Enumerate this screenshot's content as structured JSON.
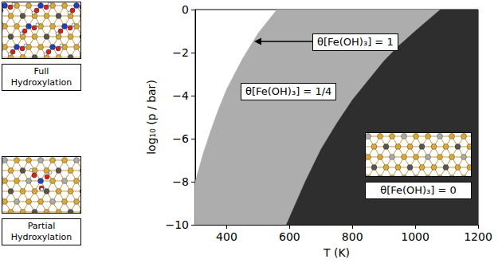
{
  "chart_data": {
    "type": "area",
    "xlabel": "T (K)",
    "ylabel": "log₁₀ (p / bar)",
    "xlim": [
      300,
      1200
    ],
    "xticks": [
      400,
      600,
      800,
      1000,
      1200
    ],
    "ylim": [
      -10,
      0
    ],
    "yticks": [
      {
        "value": -10,
        "label": "−10"
      },
      {
        "value": -8,
        "label": "−8"
      },
      {
        "value": -6,
        "label": "−6"
      },
      {
        "value": -4,
        "label": "−4"
      },
      {
        "value": -2,
        "label": "−2"
      },
      0
    ],
    "grid": false,
    "series": [
      {
        "name": "θ[Fe(OH)₃] = 1/4",
        "color": "#adadad",
        "x": [
          300,
          325,
          350,
          375,
          400,
          450,
          500,
          560
        ],
        "values": [
          -8,
          -6.7,
          -5.6,
          -4.6,
          -3.7,
          -2.3,
          -1.1,
          0
        ]
      },
      {
        "name": "θ[Fe(OH)₃] = 0",
        "color": "#2e2e2e",
        "x": [
          590,
          650,
          700,
          750,
          800,
          850,
          900,
          950,
          1000,
          1080
        ],
        "values": [
          -10,
          -8.0,
          -6.5,
          -5.3,
          -4.2,
          -3.3,
          -2.4,
          -1.65,
          -1.0,
          0
        ]
      }
    ],
    "annotations": [
      "θ[Fe(OH)₃] = 1"
    ]
  },
  "panels": [
    {
      "caption": "Full Hydroxylation"
    },
    {
      "caption": "Partial Hydroxylation"
    }
  ]
}
